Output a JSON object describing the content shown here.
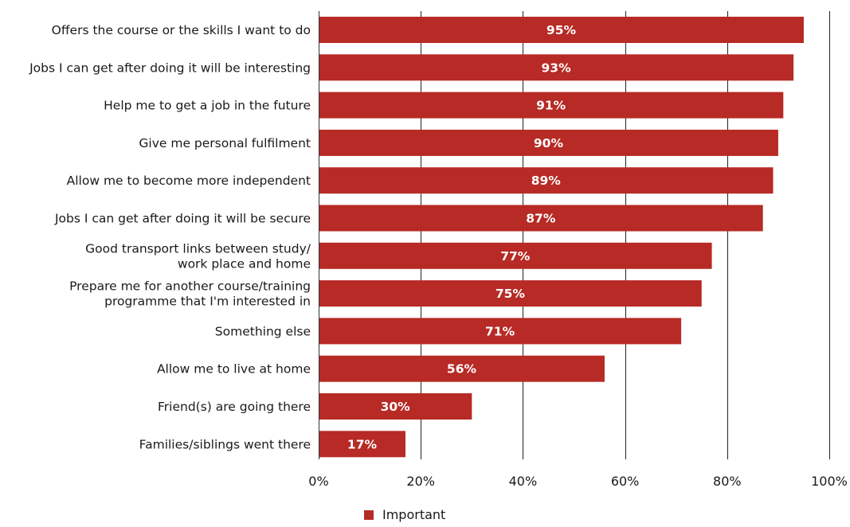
{
  "chart_data": {
    "type": "bar",
    "orientation": "horizontal",
    "categories": [
      [
        "Offers the course or the skills I want to do"
      ],
      [
        "Jobs I can get after doing it will be interesting"
      ],
      [
        "Help me to get a job in the future"
      ],
      [
        "Give me personal fulfilment"
      ],
      [
        "Allow me to become more independent"
      ],
      [
        "Jobs I can get after doing it will be secure"
      ],
      [
        "Good transport links between study/",
        "work place and home"
      ],
      [
        "Prepare me for another course/training",
        "programme that I'm interested in"
      ],
      [
        "Something else"
      ],
      [
        "Allow me to live at home"
      ],
      [
        "Friend(s) are going there"
      ],
      [
        "Families/siblings went there"
      ]
    ],
    "series": [
      {
        "name": "Important",
        "color": "#b72a25",
        "values": [
          95,
          93,
          91,
          90,
          89,
          87,
          77,
          75,
          71,
          56,
          30,
          17
        ]
      }
    ],
    "value_suffix": "%",
    "xlim": [
      0,
      100
    ],
    "xticks": [
      0,
      20,
      40,
      60,
      80,
      100
    ],
    "xtick_labels": [
      "0%",
      "20%",
      "40%",
      "60%",
      "80%",
      "100%"
    ],
    "grid": "vertical",
    "legend": "bottom-center",
    "title": "",
    "xlabel": "",
    "ylabel": ""
  }
}
